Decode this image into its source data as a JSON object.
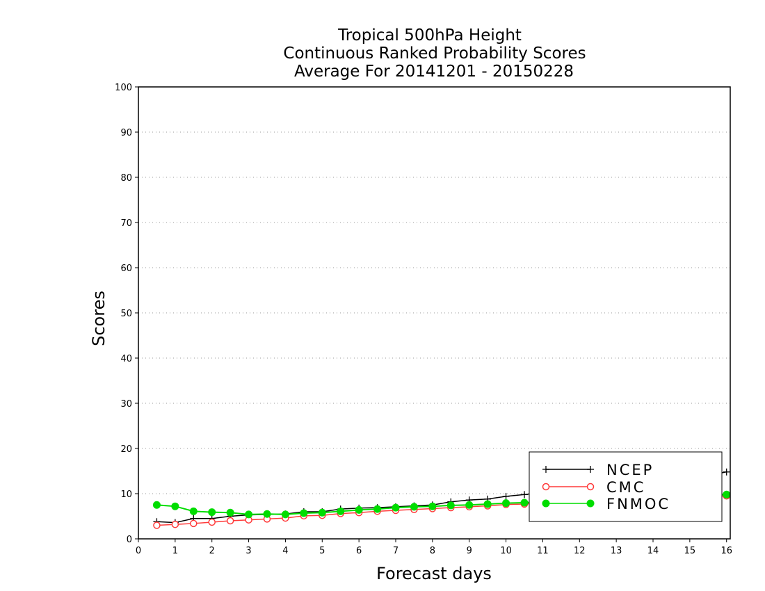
{
  "chart_data": {
    "type": "line",
    "title": [
      "Tropical 500hPa Height",
      "Continuous Ranked Probability Scores",
      "Average For 20141201 - 20150228"
    ],
    "xlabel": "Forecast days",
    "ylabel": "Scores",
    "xlim": [
      0,
      16.1
    ],
    "ylim": [
      0,
      100
    ],
    "xticks": [
      "0",
      "1",
      "2",
      "3",
      "4",
      "5",
      "6",
      "7",
      "8",
      "9",
      "10",
      "11",
      "12",
      "13",
      "14",
      "15",
      "16"
    ],
    "yticks": [
      "0",
      "10",
      "20",
      "30",
      "40",
      "50",
      "60",
      "70",
      "80",
      "90",
      "100"
    ],
    "grid": "horizontal dotted",
    "legend_position": "bottom-right",
    "x": [
      0.5,
      1,
      1.5,
      2,
      2.5,
      3,
      3.5,
      4,
      4.5,
      5,
      5.5,
      6,
      6.5,
      7,
      7.5,
      8,
      8.5,
      9,
      9.5,
      10,
      10.5,
      11,
      11.5,
      12,
      12.5,
      13,
      13.5,
      14,
      14.5,
      15,
      15.5,
      16
    ],
    "series": [
      {
        "name": "NCEP",
        "color": "#000000",
        "marker": "plus",
        "values": [
          3.8,
          3.6,
          4.5,
          4.5,
          5.0,
          5.3,
          5.4,
          5.5,
          6.0,
          6.0,
          6.6,
          6.8,
          6.9,
          7.1,
          7.3,
          7.5,
          8.2,
          8.6,
          8.8,
          9.4,
          9.8,
          10.2,
          10.6,
          11.0,
          11.4,
          11.8,
          12.3,
          12.7,
          13.1,
          13.6,
          14.1,
          14.8
        ]
      },
      {
        "name": "CMC",
        "color": "#ff3a3a",
        "marker": "open-circle",
        "values": [
          3.0,
          3.2,
          3.4,
          3.7,
          4.0,
          4.2,
          4.4,
          4.6,
          5.1,
          5.2,
          5.6,
          5.8,
          6.1,
          6.3,
          6.5,
          6.7,
          6.9,
          7.1,
          7.3,
          7.6,
          7.7,
          7.9,
          8.1,
          8.3,
          8.4,
          8.6,
          8.7,
          8.9,
          9.0,
          9.2,
          9.3,
          9.5
        ]
      },
      {
        "name": "FNMOC",
        "color": "#00dd00",
        "marker": "filled-circle",
        "values": [
          7.5,
          7.2,
          6.1,
          5.9,
          5.8,
          5.4,
          5.5,
          5.4,
          5.7,
          5.8,
          6.1,
          6.4,
          6.6,
          6.9,
          7.1,
          7.2,
          7.4,
          7.5,
          7.7,
          7.9,
          8.0,
          8.2,
          8.4,
          8.5,
          8.7,
          8.9,
          9.0,
          9.2,
          9.3,
          9.5,
          9.6,
          9.8
        ]
      }
    ]
  }
}
